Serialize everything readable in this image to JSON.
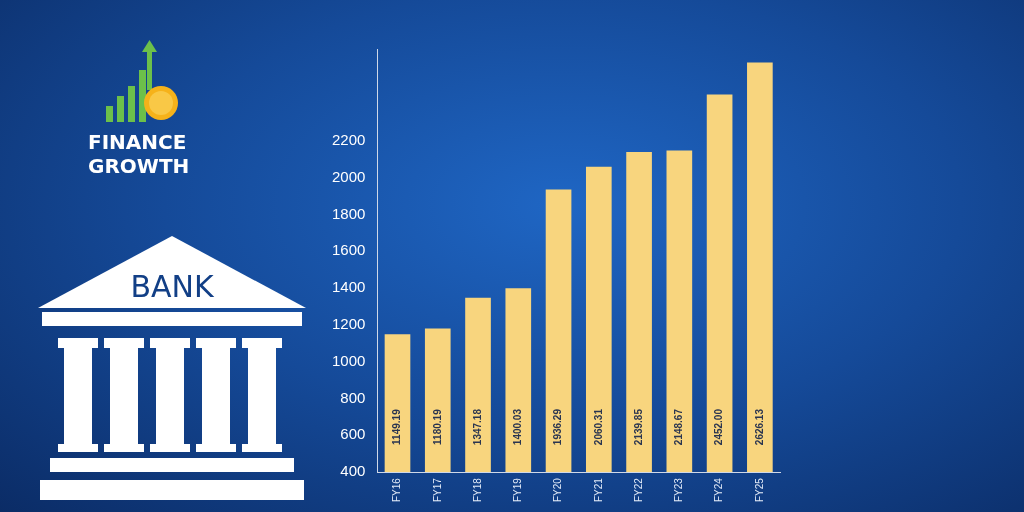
{
  "chart_data": {
    "type": "bar",
    "categories": [
      "FY16",
      "FY17",
      "FY18",
      "FY19",
      "FY20",
      "FY21",
      "FY22",
      "FY23",
      "FY24",
      "FY25"
    ],
    "values": [
      1149.19,
      1180.19,
      1347.18,
      1400.03,
      1936.29,
      2060.31,
      2139.85,
      2148.67,
      2452.0,
      2626.13
    ],
    "value_labels": [
      "1149.19",
      "1180.19",
      "1347.18",
      "1400.03",
      "1936.29",
      "2060.31",
      "2139.85",
      "2148.67",
      "2452.00",
      "2626.13"
    ],
    "color": "#f8d57e",
    "ylim": [
      400,
      2700
    ],
    "yticks": [
      400,
      600,
      800,
      1000,
      1200,
      1400,
      1600,
      1800,
      2000,
      2200
    ],
    "annotations": [
      "FINANCE GROWTH",
      "BANK"
    ]
  }
}
